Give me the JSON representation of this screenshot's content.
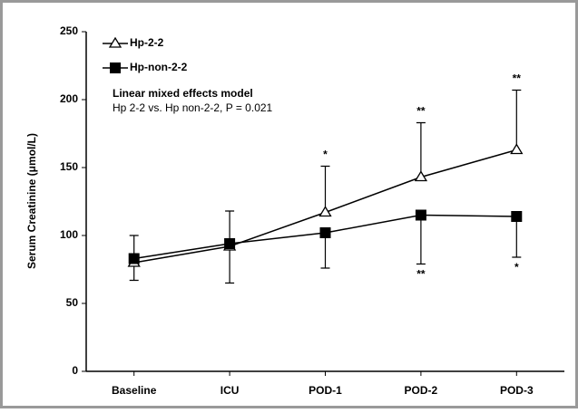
{
  "chart_data": {
    "type": "line",
    "y_label": "Serum Creatinine (μmol/L)",
    "annotation_title": "Linear mixed effects model",
    "annotation_text": "Hp 2-2 vs. Hp non-2-2, P = 0.021",
    "categories": [
      "Baseline",
      "ICU",
      "POD-1",
      "POD-2",
      "POD-3"
    ],
    "series": [
      {
        "name": "Hp-2-2",
        "color": "#000000",
        "marker": "open-triangle",
        "error_direction": "up",
        "values": [
          80,
          92,
          117,
          143,
          163
        ],
        "errors": [
          20,
          26,
          34,
          40,
          44
        ],
        "significance": [
          null,
          null,
          "*",
          "**",
          "**"
        ]
      },
      {
        "name": "Hp-non-2-2",
        "color": "#000000",
        "marker": "filled-square",
        "error_direction": "down",
        "values": [
          83,
          94,
          102,
          115,
          114
        ],
        "errors": [
          16,
          29,
          26,
          36,
          30
        ],
        "significance": [
          null,
          null,
          null,
          "**",
          "*"
        ]
      }
    ],
    "ylim": [
      0,
      250
    ],
    "yticks": [
      0,
      50,
      100,
      150,
      200,
      250
    ],
    "grid": false
  }
}
